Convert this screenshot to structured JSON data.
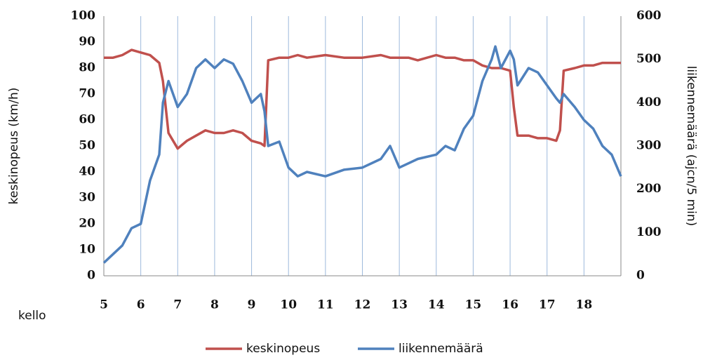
{
  "chart_data": {
    "type": "line",
    "x_label": "kello",
    "y_label": "keskinopeus (km/h)",
    "y2_label": "liikennemäärä (ajcn/5 min)",
    "x": [
      5,
      5.25,
      5.5,
      5.75,
      6,
      6.25,
      6.5,
      6.6,
      6.75,
      7,
      7.25,
      7.5,
      7.75,
      8,
      8.25,
      8.5,
      8.75,
      9,
      9.25,
      9.35,
      9.45,
      9.75,
      10,
      10.25,
      10.5,
      11,
      11.5,
      12,
      12.5,
      12.75,
      13,
      13.25,
      13.5,
      14,
      14.25,
      14.5,
      14.75,
      15,
      15.25,
      15.5,
      15.6,
      15.75,
      16,
      16.1,
      16.2,
      16.5,
      16.75,
      17,
      17.25,
      17.35,
      17.45,
      17.75,
      18,
      18.25,
      18.5,
      18.75,
      19
    ],
    "series": [
      {
        "name": "keskinopeus",
        "color": "#c0504d",
        "axis": "y",
        "values": [
          84,
          84,
          85,
          87,
          86,
          85,
          82,
          75,
          55,
          49,
          52,
          54,
          56,
          55,
          55,
          56,
          55,
          52,
          51,
          50,
          83,
          84,
          84,
          85,
          84,
          85,
          84,
          84,
          85,
          84,
          84,
          84,
          83,
          85,
          84,
          84,
          83,
          83,
          81,
          80,
          80,
          80,
          79,
          65,
          54,
          54,
          53,
          53,
          52,
          56,
          79,
          80,
          81,
          81,
          82,
          82,
          82
        ]
      },
      {
        "name": "liikennemäärä",
        "color": "#4f81bd",
        "axis": "y2",
        "values": [
          30,
          50,
          70,
          110,
          120,
          220,
          280,
          400,
          450,
          390,
          420,
          480,
          500,
          480,
          500,
          490,
          450,
          400,
          420,
          380,
          300,
          310,
          250,
          230,
          240,
          230,
          245,
          250,
          270,
          300,
          250,
          260,
          270,
          280,
          300,
          290,
          340,
          370,
          450,
          500,
          530,
          480,
          520,
          500,
          440,
          480,
          470,
          440,
          410,
          400,
          420,
          390,
          360,
          340,
          300,
          280,
          230
        ]
      }
    ],
    "xlim": [
      5,
      19
    ],
    "xticks": [
      5,
      6,
      7,
      8,
      9,
      10,
      11,
      12,
      13,
      14,
      15,
      16,
      17,
      18
    ],
    "ylim": [
      0,
      100
    ],
    "yticks": [
      0,
      10,
      20,
      30,
      40,
      50,
      60,
      70,
      80,
      90,
      100
    ],
    "y2lim": [
      0,
      600
    ],
    "y2ticks": [
      0,
      100,
      200,
      300,
      400,
      500,
      600
    ],
    "grid": "x",
    "legend": "bottom"
  }
}
